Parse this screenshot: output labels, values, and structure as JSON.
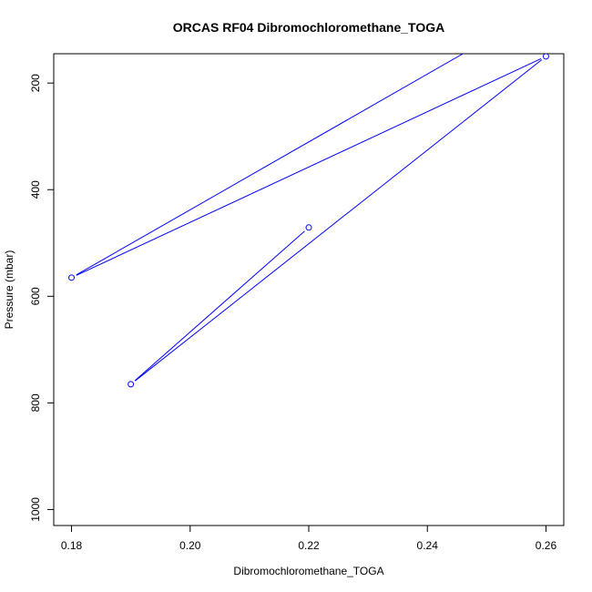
{
  "chart_data": {
    "type": "line",
    "title": "ORCAS RF04 Dibromochloromethane_TOGA",
    "xlabel": "Dibromochloromethane_TOGA",
    "ylabel": "Pressure (mbar)",
    "xlim": [
      0.177,
      0.263
    ],
    "ylim": [
      1030,
      145
    ],
    "y_reversed": true,
    "x_ticks": [
      0.18,
      0.2,
      0.22,
      0.24,
      0.26
    ],
    "x_tick_labels": [
      "0.18",
      "0.20",
      "0.22",
      "0.24",
      "0.26"
    ],
    "y_ticks": [
      200,
      400,
      600,
      800,
      1000
    ],
    "y_tick_labels": [
      "200",
      "400",
      "600",
      "800",
      "1000"
    ],
    "grid": false,
    "legend": "none",
    "series": [
      {
        "color": "#0000ff",
        "marker": "open-circle",
        "points": [
          {
            "x": 0.22,
            "y": 471
          },
          {
            "x": 0.19,
            "y": 765
          },
          {
            "x": 0.26,
            "y": 150
          },
          {
            "x": 0.18,
            "y": 565
          },
          {
            "x": 0.246,
            "y": 145
          }
        ],
        "marker_indices": [
          0,
          1,
          2,
          3
        ]
      }
    ]
  }
}
